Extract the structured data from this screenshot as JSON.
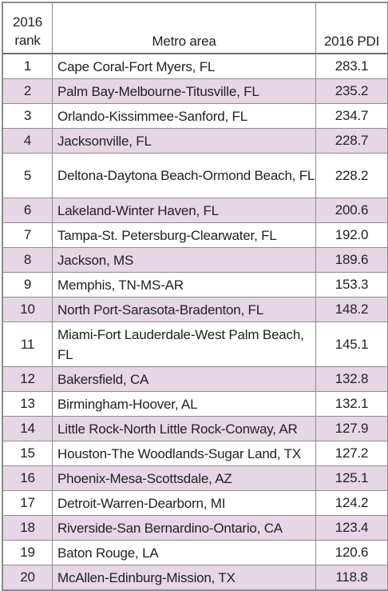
{
  "headers": {
    "rank_line1": "2016",
    "rank_line2": "rank",
    "metro": "Metro area",
    "pdi": "2016 PDI"
  },
  "rows": [
    {
      "rank": "1",
      "metro": "Cape Coral-Fort Myers, FL",
      "pdi": "283.1"
    },
    {
      "rank": "2",
      "metro": "Palm Bay-Melbourne-Titusville, FL",
      "pdi": "235.2"
    },
    {
      "rank": "3",
      "metro": "Orlando-Kissimmee-Sanford, FL",
      "pdi": "234.7"
    },
    {
      "rank": "4",
      "metro": "Jacksonville, FL",
      "pdi": "228.7"
    },
    {
      "rank": "5",
      "metro": "Deltona-Daytona Beach-Ormond Beach, FL",
      "pdi": "228.2"
    },
    {
      "rank": "6",
      "metro": "Lakeland-Winter Haven, FL",
      "pdi": "200.6"
    },
    {
      "rank": "7",
      "metro": "Tampa-St. Petersburg-Clearwater, FL",
      "pdi": "192.0"
    },
    {
      "rank": "8",
      "metro": "Jackson, MS",
      "pdi": "189.6"
    },
    {
      "rank": "9",
      "metro": "Memphis, TN-MS-AR",
      "pdi": "153.3"
    },
    {
      "rank": "10",
      "metro": "North Port-Sarasota-Bradenton, FL",
      "pdi": "148.2"
    },
    {
      "rank": "11",
      "metro": "Miami-Fort Lauderdale-West Palm Beach, FL",
      "pdi": "145.1"
    },
    {
      "rank": "12",
      "metro": "Bakersfield, CA",
      "pdi": "132.8"
    },
    {
      "rank": "13",
      "metro": "Birmingham-Hoover, AL",
      "pdi": "132.1"
    },
    {
      "rank": "14",
      "metro": "Little Rock-North Little Rock-Conway, AR",
      "pdi": "127.9"
    },
    {
      "rank": "15",
      "metro": "Houston-The Woodlands-Sugar Land, TX",
      "pdi": "127.2"
    },
    {
      "rank": "16",
      "metro": "Phoenix-Mesa-Scottsdale, AZ",
      "pdi": "125.1"
    },
    {
      "rank": "17",
      "metro": "Detroit-Warren-Dearborn, MI",
      "pdi": "124.2"
    },
    {
      "rank": "18",
      "metro": "Riverside-San Bernardino-Ontario, CA",
      "pdi": "123.4"
    },
    {
      "rank": "19",
      "metro": "Baton Rouge, LA",
      "pdi": "120.6"
    },
    {
      "rank": "20",
      "metro": "McAllen-Edinburg-Mission, TX",
      "pdi": "118.8"
    }
  ]
}
